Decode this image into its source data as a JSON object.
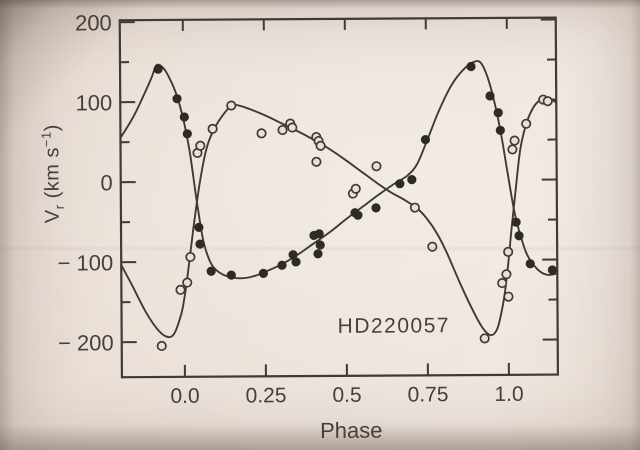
{
  "chart_data": {
    "type": "scatter",
    "title": "HD220057",
    "xlabel": "Phase",
    "ylabel": {
      "v": "V",
      "sub": "r",
      "unit_pre": " (km s",
      "sup": "−1",
      "unit_post": ")"
    },
    "x_axis": {
      "range": [
        -0.195,
        1.151
      ],
      "major_ticks": [
        {
          "v": 0.0,
          "label": "0.0"
        },
        {
          "v": 0.25,
          "label": "0.25"
        },
        {
          "v": 0.5,
          "label": "0.5"
        },
        {
          "v": 0.75,
          "label": "0.75"
        },
        {
          "v": 1.0,
          "label": "1.0"
        }
      ]
    },
    "y_axis": {
      "range": [
        -244,
        202
      ],
      "major_ticks": [
        {
          "v": 200,
          "label": "200"
        },
        {
          "v": 100,
          "label": "100"
        },
        {
          "v": 0,
          "label": "0"
        },
        {
          "v": -100,
          "label": "− 100"
        },
        {
          "v": -200,
          "label": "− 200"
        }
      ],
      "minor_ticks": [
        150,
        50,
        -50,
        -150
      ]
    },
    "grid": false,
    "legend": "none",
    "series": [
      {
        "name": "primary-component",
        "marker": "filled-circle",
        "points": [
          [
            -0.077,
            141
          ],
          [
            -0.019,
            104
          ],
          [
            0.003,
            81
          ],
          [
            0.012,
            60
          ],
          [
            0.046,
            -57
          ],
          [
            0.049,
            -78
          ],
          [
            0.083,
            -112
          ],
          [
            0.145,
            -117
          ],
          [
            0.244,
            -115
          ],
          [
            0.302,
            -105
          ],
          [
            0.336,
            -92
          ],
          [
            0.345,
            -101
          ],
          [
            0.401,
            -68
          ],
          [
            0.417,
            -66
          ],
          [
            0.42,
            -80
          ],
          [
            0.413,
            -91
          ],
          [
            0.528,
            -40
          ],
          [
            0.537,
            -43
          ],
          [
            0.593,
            -34
          ],
          [
            0.667,
            -4
          ],
          [
            0.704,
            1
          ],
          [
            0.747,
            51
          ],
          [
            0.889,
            142
          ],
          [
            0.947,
            105
          ],
          [
            0.972,
            84
          ],
          [
            0.978,
            62
          ],
          [
            1.025,
            -53
          ],
          [
            1.034,
            -70
          ],
          [
            1.068,
            -105
          ],
          [
            1.136,
            -113
          ]
        ]
      },
      {
        "name": "secondary-component",
        "marker": "open-circle",
        "points": [
          [
            -0.071,
            -205
          ],
          [
            -0.012,
            -135
          ],
          [
            0.009,
            -126
          ],
          [
            0.019,
            -94
          ],
          [
            0.043,
            36
          ],
          [
            0.052,
            45
          ],
          [
            0.09,
            66
          ],
          [
            0.148,
            95
          ],
          [
            0.241,
            60
          ],
          [
            0.306,
            64
          ],
          [
            0.33,
            72
          ],
          [
            0.336,
            67
          ],
          [
            0.41,
            55
          ],
          [
            0.417,
            50
          ],
          [
            0.423,
            44
          ],
          [
            0.41,
            24
          ],
          [
            0.522,
            -16
          ],
          [
            0.531,
            -10
          ],
          [
            0.595,
            18
          ],
          [
            0.713,
            -34
          ],
          [
            0.766,
            -83
          ],
          [
            0.926,
            -198
          ],
          [
            0.981,
            -129
          ],
          [
            0.994,
            -118
          ],
          [
            1.0,
            -90
          ],
          [
            1.0,
            -146
          ],
          [
            1.015,
            38
          ],
          [
            1.022,
            49
          ],
          [
            1.058,
            70
          ],
          [
            1.111,
            100
          ],
          [
            1.125,
            98
          ]
        ]
      }
    ],
    "curves": [
      {
        "name": "primary-fit",
        "points": [
          [
            -0.195,
            55
          ],
          [
            -0.15,
            85
          ],
          [
            -0.1,
            128
          ],
          [
            -0.082,
            146
          ],
          [
            -0.06,
            142
          ],
          [
            -0.04,
            128
          ],
          [
            -0.02,
            108
          ],
          [
            0.0,
            78
          ],
          [
            0.02,
            35
          ],
          [
            0.04,
            -25
          ],
          [
            0.06,
            -75
          ],
          [
            0.08,
            -100
          ],
          [
            0.1,
            -111
          ],
          [
            0.13,
            -118
          ],
          [
            0.17,
            -121
          ],
          [
            0.21,
            -119
          ],
          [
            0.25,
            -113
          ],
          [
            0.3,
            -104
          ],
          [
            0.35,
            -92
          ],
          [
            0.4,
            -78
          ],
          [
            0.45,
            -64
          ],
          [
            0.5,
            -48
          ],
          [
            0.55,
            -33
          ],
          [
            0.6,
            -18
          ],
          [
            0.65,
            -4
          ],
          [
            0.69,
            6
          ],
          [
            0.72,
            20
          ],
          [
            0.75,
            48
          ],
          [
            0.79,
            88
          ],
          [
            0.83,
            120
          ],
          [
            0.87,
            140
          ],
          [
            0.9,
            148
          ],
          [
            0.92,
            146
          ],
          [
            0.94,
            128
          ],
          [
            0.96,
            98
          ],
          [
            0.98,
            58
          ],
          [
            1.0,
            8
          ],
          [
            1.02,
            -40
          ],
          [
            1.04,
            -72
          ],
          [
            1.06,
            -95
          ],
          [
            1.09,
            -112
          ],
          [
            1.12,
            -119
          ],
          [
            1.155,
            -117
          ]
        ]
      },
      {
        "name": "secondary-fit",
        "points": [
          [
            -0.195,
            -103
          ],
          [
            -0.16,
            -130
          ],
          [
            -0.12,
            -162
          ],
          [
            -0.08,
            -186
          ],
          [
            -0.05,
            -194
          ],
          [
            -0.03,
            -188
          ],
          [
            -0.01,
            -165
          ],
          [
            0.0,
            -145
          ],
          [
            0.01,
            -118
          ],
          [
            0.03,
            -55
          ],
          [
            0.05,
            0
          ],
          [
            0.07,
            40
          ],
          [
            0.09,
            62
          ],
          [
            0.12,
            82
          ],
          [
            0.15,
            95
          ],
          [
            0.18,
            94
          ],
          [
            0.22,
            88
          ],
          [
            0.26,
            81
          ],
          [
            0.3,
            73
          ],
          [
            0.35,
            63
          ],
          [
            0.4,
            52
          ],
          [
            0.45,
            40
          ],
          [
            0.5,
            26
          ],
          [
            0.55,
            11
          ],
          [
            0.6,
            -4
          ],
          [
            0.64,
            -15
          ],
          [
            0.68,
            -24
          ],
          [
            0.72,
            -35
          ],
          [
            0.75,
            -48
          ],
          [
            0.78,
            -66
          ],
          [
            0.81,
            -90
          ],
          [
            0.85,
            -128
          ],
          [
            0.89,
            -163
          ],
          [
            0.92,
            -185
          ],
          [
            0.945,
            -194
          ],
          [
            0.965,
            -186
          ],
          [
            0.98,
            -162
          ],
          [
            0.99,
            -138
          ],
          [
            1.0,
            -105
          ],
          [
            1.01,
            -65
          ],
          [
            1.025,
            -10
          ],
          [
            1.04,
            40
          ],
          [
            1.06,
            72
          ],
          [
            1.08,
            90
          ],
          [
            1.1,
            99
          ],
          [
            1.12,
            101
          ],
          [
            1.14,
            99
          ],
          [
            1.155,
            95
          ]
        ]
      }
    ],
    "colors": {
      "ink": "#3e3b36",
      "filled_dot": "#2e2b27",
      "open_dot_fill": "#eae0d8",
      "paper": "#e9ded6",
      "text": "#45413b"
    }
  }
}
